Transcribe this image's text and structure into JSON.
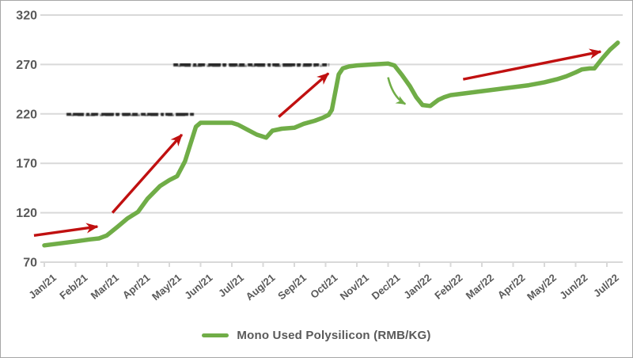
{
  "chart_data": {
    "type": "line",
    "title": "",
    "xlabel": "",
    "ylabel": "",
    "ylim": [
      70,
      320
    ],
    "yticks": [
      70,
      120,
      170,
      220,
      270,
      320
    ],
    "grid": true,
    "legend_position": "bottom",
    "categories": [
      "Jan/21",
      "Feb/21",
      "Mar/21",
      "Apr/21",
      "May/21",
      "Jun/21",
      "Jul/21",
      "Aug/21",
      "Sep/21",
      "Oct/21",
      "Nov/21",
      "Dec/21",
      "Jan/22",
      "Feb/22",
      "Mar/22",
      "Apr/22",
      "May/22",
      "Jun/22",
      "Jul/22"
    ],
    "values_monthly": [
      87,
      91,
      97,
      121,
      153,
      211,
      211,
      196,
      206,
      218,
      269,
      271,
      230,
      239,
      243,
      247,
      252,
      262,
      285
    ],
    "series": [
      {
        "name": "Mono Used Polysilicon (RMB/KG)",
        "color": "#70AD47",
        "points": [
          [
            0,
            87
          ],
          [
            0.5,
            89
          ],
          [
            1,
            91
          ],
          [
            1.45,
            93
          ],
          [
            1.75,
            94
          ],
          [
            2,
            97
          ],
          [
            2.35,
            106
          ],
          [
            2.65,
            114
          ],
          [
            3,
            121
          ],
          [
            3.3,
            134
          ],
          [
            3.7,
            147
          ],
          [
            4,
            153
          ],
          [
            4.25,
            157
          ],
          [
            4.5,
            172
          ],
          [
            4.85,
            207
          ],
          [
            5,
            211
          ],
          [
            6,
            211
          ],
          [
            6.2,
            209
          ],
          [
            6.5,
            204
          ],
          [
            6.8,
            199
          ],
          [
            7.1,
            196
          ],
          [
            7.3,
            203
          ],
          [
            7.6,
            205
          ],
          [
            8,
            206
          ],
          [
            8.3,
            210
          ],
          [
            8.65,
            213
          ],
          [
            8.9,
            216
          ],
          [
            9.1,
            219
          ],
          [
            9.2,
            224
          ],
          [
            9.42,
            260
          ],
          [
            9.55,
            266
          ],
          [
            9.75,
            268
          ],
          [
            10,
            269
          ],
          [
            10.5,
            270
          ],
          [
            11,
            271
          ],
          [
            11.2,
            269
          ],
          [
            11.45,
            259
          ],
          [
            11.7,
            248
          ],
          [
            11.9,
            237
          ],
          [
            12.1,
            229
          ],
          [
            12.35,
            228
          ],
          [
            12.6,
            234
          ],
          [
            12.8,
            237
          ],
          [
            13,
            239
          ],
          [
            13.5,
            241
          ],
          [
            14,
            243
          ],
          [
            14.5,
            245
          ],
          [
            15,
            247
          ],
          [
            15.5,
            249
          ],
          [
            16,
            252
          ],
          [
            16.4,
            255
          ],
          [
            16.7,
            258
          ],
          [
            17,
            262
          ],
          [
            17.2,
            265
          ],
          [
            17.45,
            266
          ],
          [
            17.6,
            266
          ],
          [
            17.85,
            276
          ],
          [
            18.1,
            285
          ],
          [
            18.35,
            292
          ]
        ]
      }
    ],
    "legend": {
      "label": "Mono Used Polysilicon (RMB/KG)",
      "swatch_color": "#70AD47"
    },
    "annotations": {
      "trend_arrows": [
        {
          "from": [
            -0.33,
            97
          ],
          "to": [
            1.7,
            106
          ]
        },
        {
          "from": [
            2.18,
            120
          ],
          "to": [
            4.4,
            199
          ]
        },
        {
          "from": [
            7.5,
            217
          ],
          "to": [
            9.09,
            261
          ]
        },
        {
          "from": [
            13.4,
            255
          ],
          "to": [
            17.8,
            283
          ]
        }
      ],
      "drop_arrow": {
        "from": [
          11.0,
          257
        ],
        "ctrl": [
          11.15,
          237
        ],
        "to": [
          11.55,
          230
        ]
      },
      "redacted_scribbles": [
        {
          "x1": 0.71,
          "x2": 4.81,
          "value": 220
        },
        {
          "x1": 4.13,
          "x2": 9.11,
          "value": 270
        }
      ]
    },
    "palette": {
      "line_green": "#70AD47",
      "arrow_red": "#C01010",
      "axis_text": "#595959",
      "gridline": "#D9D9D9",
      "scribble": "#141414",
      "frame_border": "#A6A6A6"
    }
  }
}
